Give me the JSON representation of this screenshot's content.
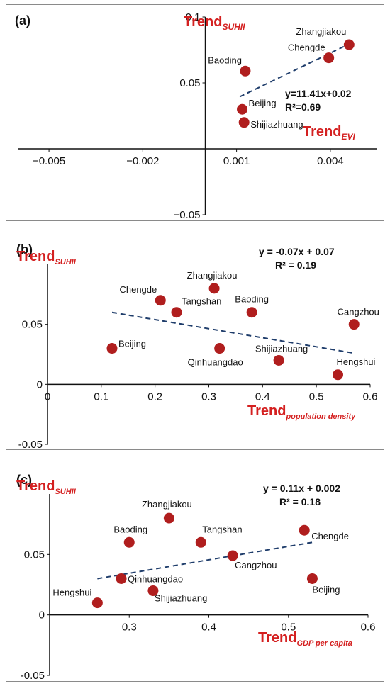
{
  "chart_data": [
    {
      "type": "scatter",
      "panel_label": "(a)",
      "xlabel": "Trend",
      "xlabel_sub": "EVI",
      "ylabel": "Trend",
      "ylabel_sub": "SUHII",
      "xlim": [
        -0.006,
        0.0055
      ],
      "ylim": [
        -0.05,
        0.1
      ],
      "x_ticks": [
        -0.005,
        -0.002,
        0.001,
        0.004
      ],
      "x_tick_labels": [
        "−0.005",
        "−0.002",
        "0.001",
        "0.004"
      ],
      "y_ticks": [
        -0.05,
        0.05,
        0.1
      ],
      "y_tick_labels": [
        "−0.05",
        "0.05",
        "0.1"
      ],
      "equation": "y=11.41x+0.02",
      "r2": "R²=0.69",
      "trendline": [
        [
          0.0011,
          0.0395
        ],
        [
          0.0046,
          0.0795
        ]
      ],
      "points": [
        {
          "name": "Zhangjiakou",
          "x": 0.0046,
          "y": 0.079
        },
        {
          "name": "Chengde",
          "x": 0.00395,
          "y": 0.069
        },
        {
          "name": "Baoding",
          "x": 0.00128,
          "y": 0.059
        },
        {
          "name": "Beijing",
          "x": 0.00118,
          "y": 0.03
        },
        {
          "name": "Shijiazhuang",
          "x": 0.00124,
          "y": 0.02
        }
      ],
      "grid": false,
      "color": "#b01e1e"
    },
    {
      "type": "scatter",
      "panel_label": "(b)",
      "xlabel": "Trend",
      "xlabel_sub": "population  density",
      "ylabel": "Trend",
      "ylabel_sub": "SUHII",
      "xlim": [
        0,
        0.6
      ],
      "ylim": [
        -0.05,
        0.1
      ],
      "x_ticks": [
        0,
        0.1,
        0.2,
        0.3,
        0.4,
        0.5,
        0.6
      ],
      "x_tick_labels": [
        "0",
        "0.1",
        "0.2",
        "0.3",
        "0.4",
        "0.5",
        "0.6"
      ],
      "y_ticks": [
        -0.05,
        0,
        0.05
      ],
      "y_tick_labels": [
        "-0.05",
        "0",
        "0.05"
      ],
      "equation": "y = -0.07x + 0.07",
      "r2": "R² = 0.19",
      "trendline": [
        [
          0.12,
          0.06
        ],
        [
          0.57,
          0.026
        ]
      ],
      "points": [
        {
          "name": "Zhangjiakou",
          "x": 0.31,
          "y": 0.08
        },
        {
          "name": "Chengde",
          "x": 0.21,
          "y": 0.07
        },
        {
          "name": "Tangshan",
          "x": 0.24,
          "y": 0.06
        },
        {
          "name": "Baoding",
          "x": 0.38,
          "y": 0.06
        },
        {
          "name": "Cangzhou",
          "x": 0.57,
          "y": 0.05
        },
        {
          "name": "Beijing",
          "x": 0.12,
          "y": 0.03
        },
        {
          "name": "Qinhuangdao",
          "x": 0.32,
          "y": 0.03
        },
        {
          "name": "Shijiazhuang",
          "x": 0.43,
          "y": 0.02
        },
        {
          "name": "Hengshui",
          "x": 0.54,
          "y": 0.008
        }
      ],
      "grid": false,
      "color": "#b01e1e"
    },
    {
      "type": "scatter",
      "panel_label": "(c)",
      "xlabel": "Trend",
      "xlabel_sub": "GDP per capita",
      "ylabel": "Trend",
      "ylabel_sub": "SUHII",
      "xlim": [
        0.2,
        0.6
      ],
      "ylim": [
        -0.05,
        0.1
      ],
      "x_ticks": [
        0.3,
        0.4,
        0.5,
        0.6
      ],
      "x_tick_labels": [
        "0.3",
        "0.4",
        "0.5",
        "0.6"
      ],
      "y_ticks": [
        -0.05,
        0,
        0.05
      ],
      "y_tick_labels": [
        "-0.05",
        "0",
        "0.05"
      ],
      "equation": "y = 0.11x + 0.002",
      "r2": "R² = 0.18",
      "trendline": [
        [
          0.26,
          0.03
        ],
        [
          0.53,
          0.06
        ]
      ],
      "points": [
        {
          "name": "Zhangjiakou",
          "x": 0.35,
          "y": 0.08
        },
        {
          "name": "Chengde",
          "x": 0.52,
          "y": 0.07
        },
        {
          "name": "Baoding",
          "x": 0.3,
          "y": 0.06
        },
        {
          "name": "Tangshan",
          "x": 0.39,
          "y": 0.06
        },
        {
          "name": "Cangzhou",
          "x": 0.43,
          "y": 0.049
        },
        {
          "name": "Qinhuangdao",
          "x": 0.29,
          "y": 0.03
        },
        {
          "name": "Beijing",
          "x": 0.53,
          "y": 0.03
        },
        {
          "name": "Shijiazhuang",
          "x": 0.33,
          "y": 0.02
        },
        {
          "name": "Hengshui",
          "x": 0.26,
          "y": 0.01
        }
      ],
      "grid": false,
      "color": "#b01e1e"
    }
  ]
}
